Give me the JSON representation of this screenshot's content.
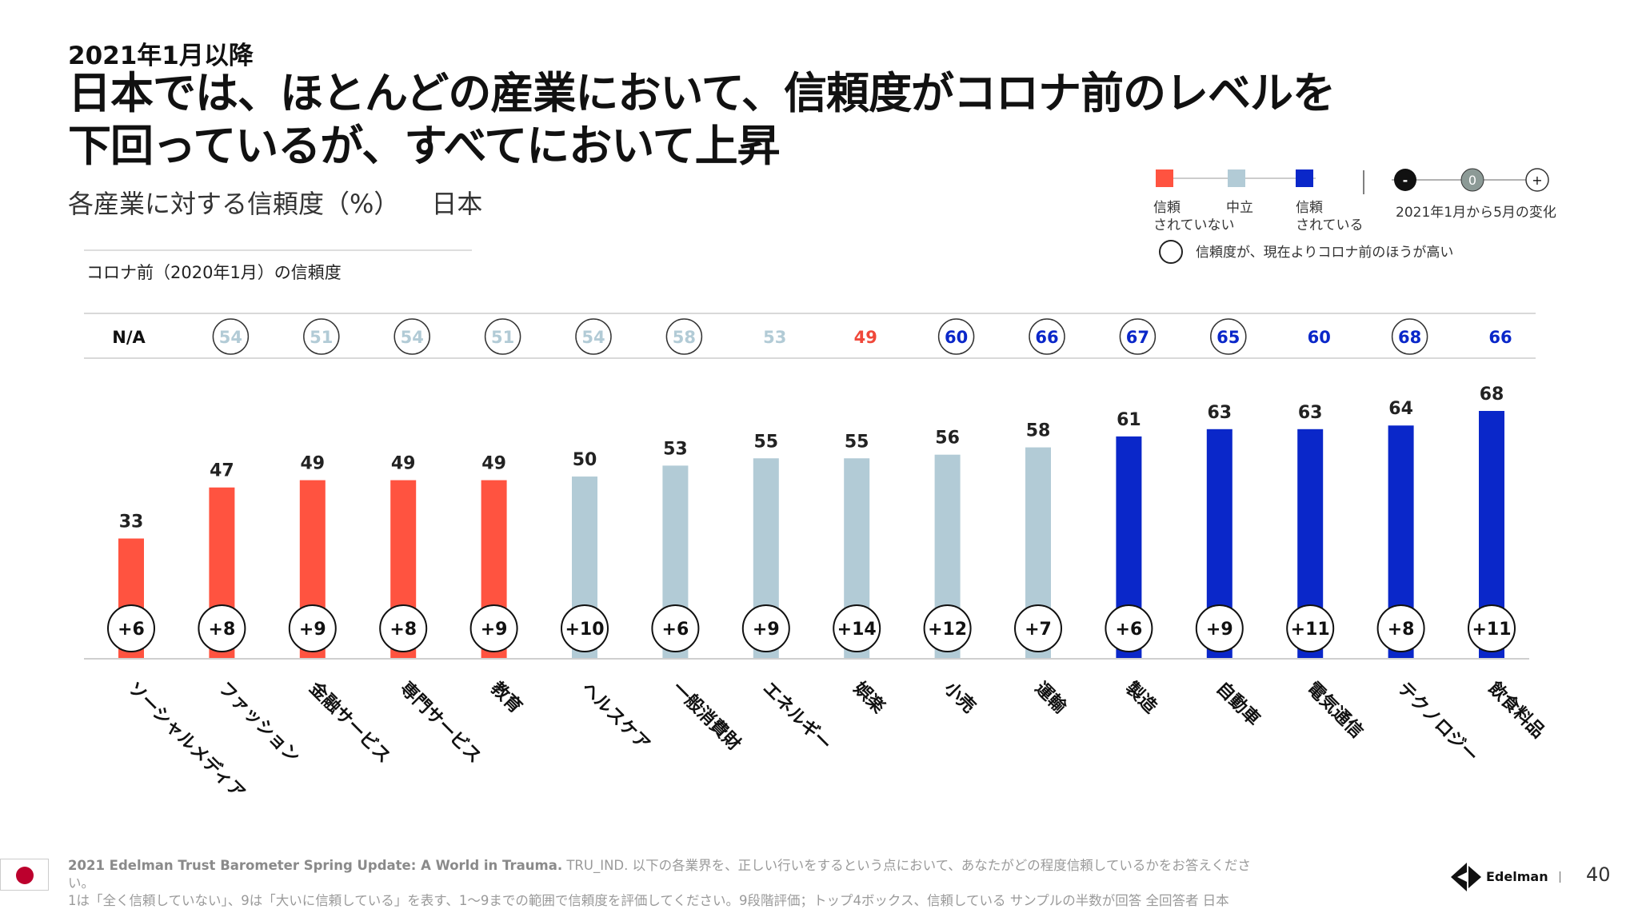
{
  "header": {
    "eyebrow": "2021年1月以降",
    "title_line1": "日本では、ほとんどの産業において、信頼度がコロナ前のレベルを",
    "title_line2": "下回っているが、すべてにおいて上昇",
    "subtitle": "各産業に対する信頼度（%）",
    "country": "日本"
  },
  "pre_covid_caption": "コロナ前（2020年1月）の信頼度",
  "legend": {
    "distrust": "信頼\nされていない",
    "neutral": "中立",
    "trust": "信頼\nされている",
    "change_neg": "-",
    "change_zero": "0",
    "change_pos": "+",
    "change_label": "2021年1月から5月の変化",
    "circle_note": "信頼度が、現在よりコロナ前のほうが高い"
  },
  "colors": {
    "distrust": "#ff5340",
    "neutral": "#b2cbd6",
    "trust": "#0a27c9",
    "prenum_neutral": "#b2cbd6",
    "prenum_distrust": "#f0483a",
    "prenum_trust": "#0a27c9"
  },
  "chart_data": {
    "type": "bar",
    "categories": [
      "ソーシャルメディア",
      "ファッション",
      "金融サービス",
      "専門サービス",
      "教育",
      "ヘルスケア",
      "一般消費財",
      "エネルギー",
      "娯楽",
      "小売",
      "運輸",
      "製造",
      "自動車",
      "電気通信",
      "テクノロジー",
      "飲食料品"
    ],
    "values": [
      33,
      47,
      49,
      49,
      49,
      50,
      53,
      55,
      55,
      56,
      58,
      61,
      63,
      63,
      64,
      68
    ],
    "trust_level": [
      "distrust",
      "distrust",
      "distrust",
      "distrust",
      "distrust",
      "neutral",
      "neutral",
      "neutral",
      "neutral",
      "neutral",
      "neutral",
      "trust",
      "trust",
      "trust",
      "trust",
      "trust"
    ],
    "change_jan_to_may": [
      "+6",
      "+8",
      "+9",
      "+8",
      "+9",
      "+10",
      "+6",
      "+9",
      "+14",
      "+12",
      "+7",
      "+6",
      "+9",
      "+11",
      "+8",
      "+11"
    ],
    "pre_covid": [
      "N/A",
      "54",
      "51",
      "54",
      "51",
      "54",
      "58",
      "53",
      "49",
      "60",
      "66",
      "67",
      "65",
      "60",
      "68",
      "66"
    ],
    "pre_covid_level": [
      "na",
      "neutral",
      "neutral",
      "neutral",
      "neutral",
      "neutral",
      "neutral",
      "neutral",
      "distrust",
      "trust",
      "trust",
      "trust",
      "trust",
      "trust",
      "trust",
      "trust"
    ],
    "pre_covid_higher": [
      false,
      true,
      true,
      true,
      true,
      true,
      true,
      false,
      false,
      true,
      true,
      true,
      true,
      false,
      true,
      false
    ],
    "ylim": [
      0,
      75
    ]
  },
  "footer": {
    "source_bold": "2021 Edelman Trust Barometer Spring Update: A World in Trauma.",
    "source_rest": " TRU_IND. 以下の各業界を、正しい行いをするという点において、あなたがどの程度信頼しているかをお答えください。",
    "source_line2": "1は「全く信頼していない」、9は「大いに信頼している」を表す、1〜9までの範囲で信頼度を評価してください。9段階評価；トップ4ボックス、信頼している サンプルの半数が回答 全回答者 日本",
    "brand": "Edelman",
    "page": "40"
  }
}
